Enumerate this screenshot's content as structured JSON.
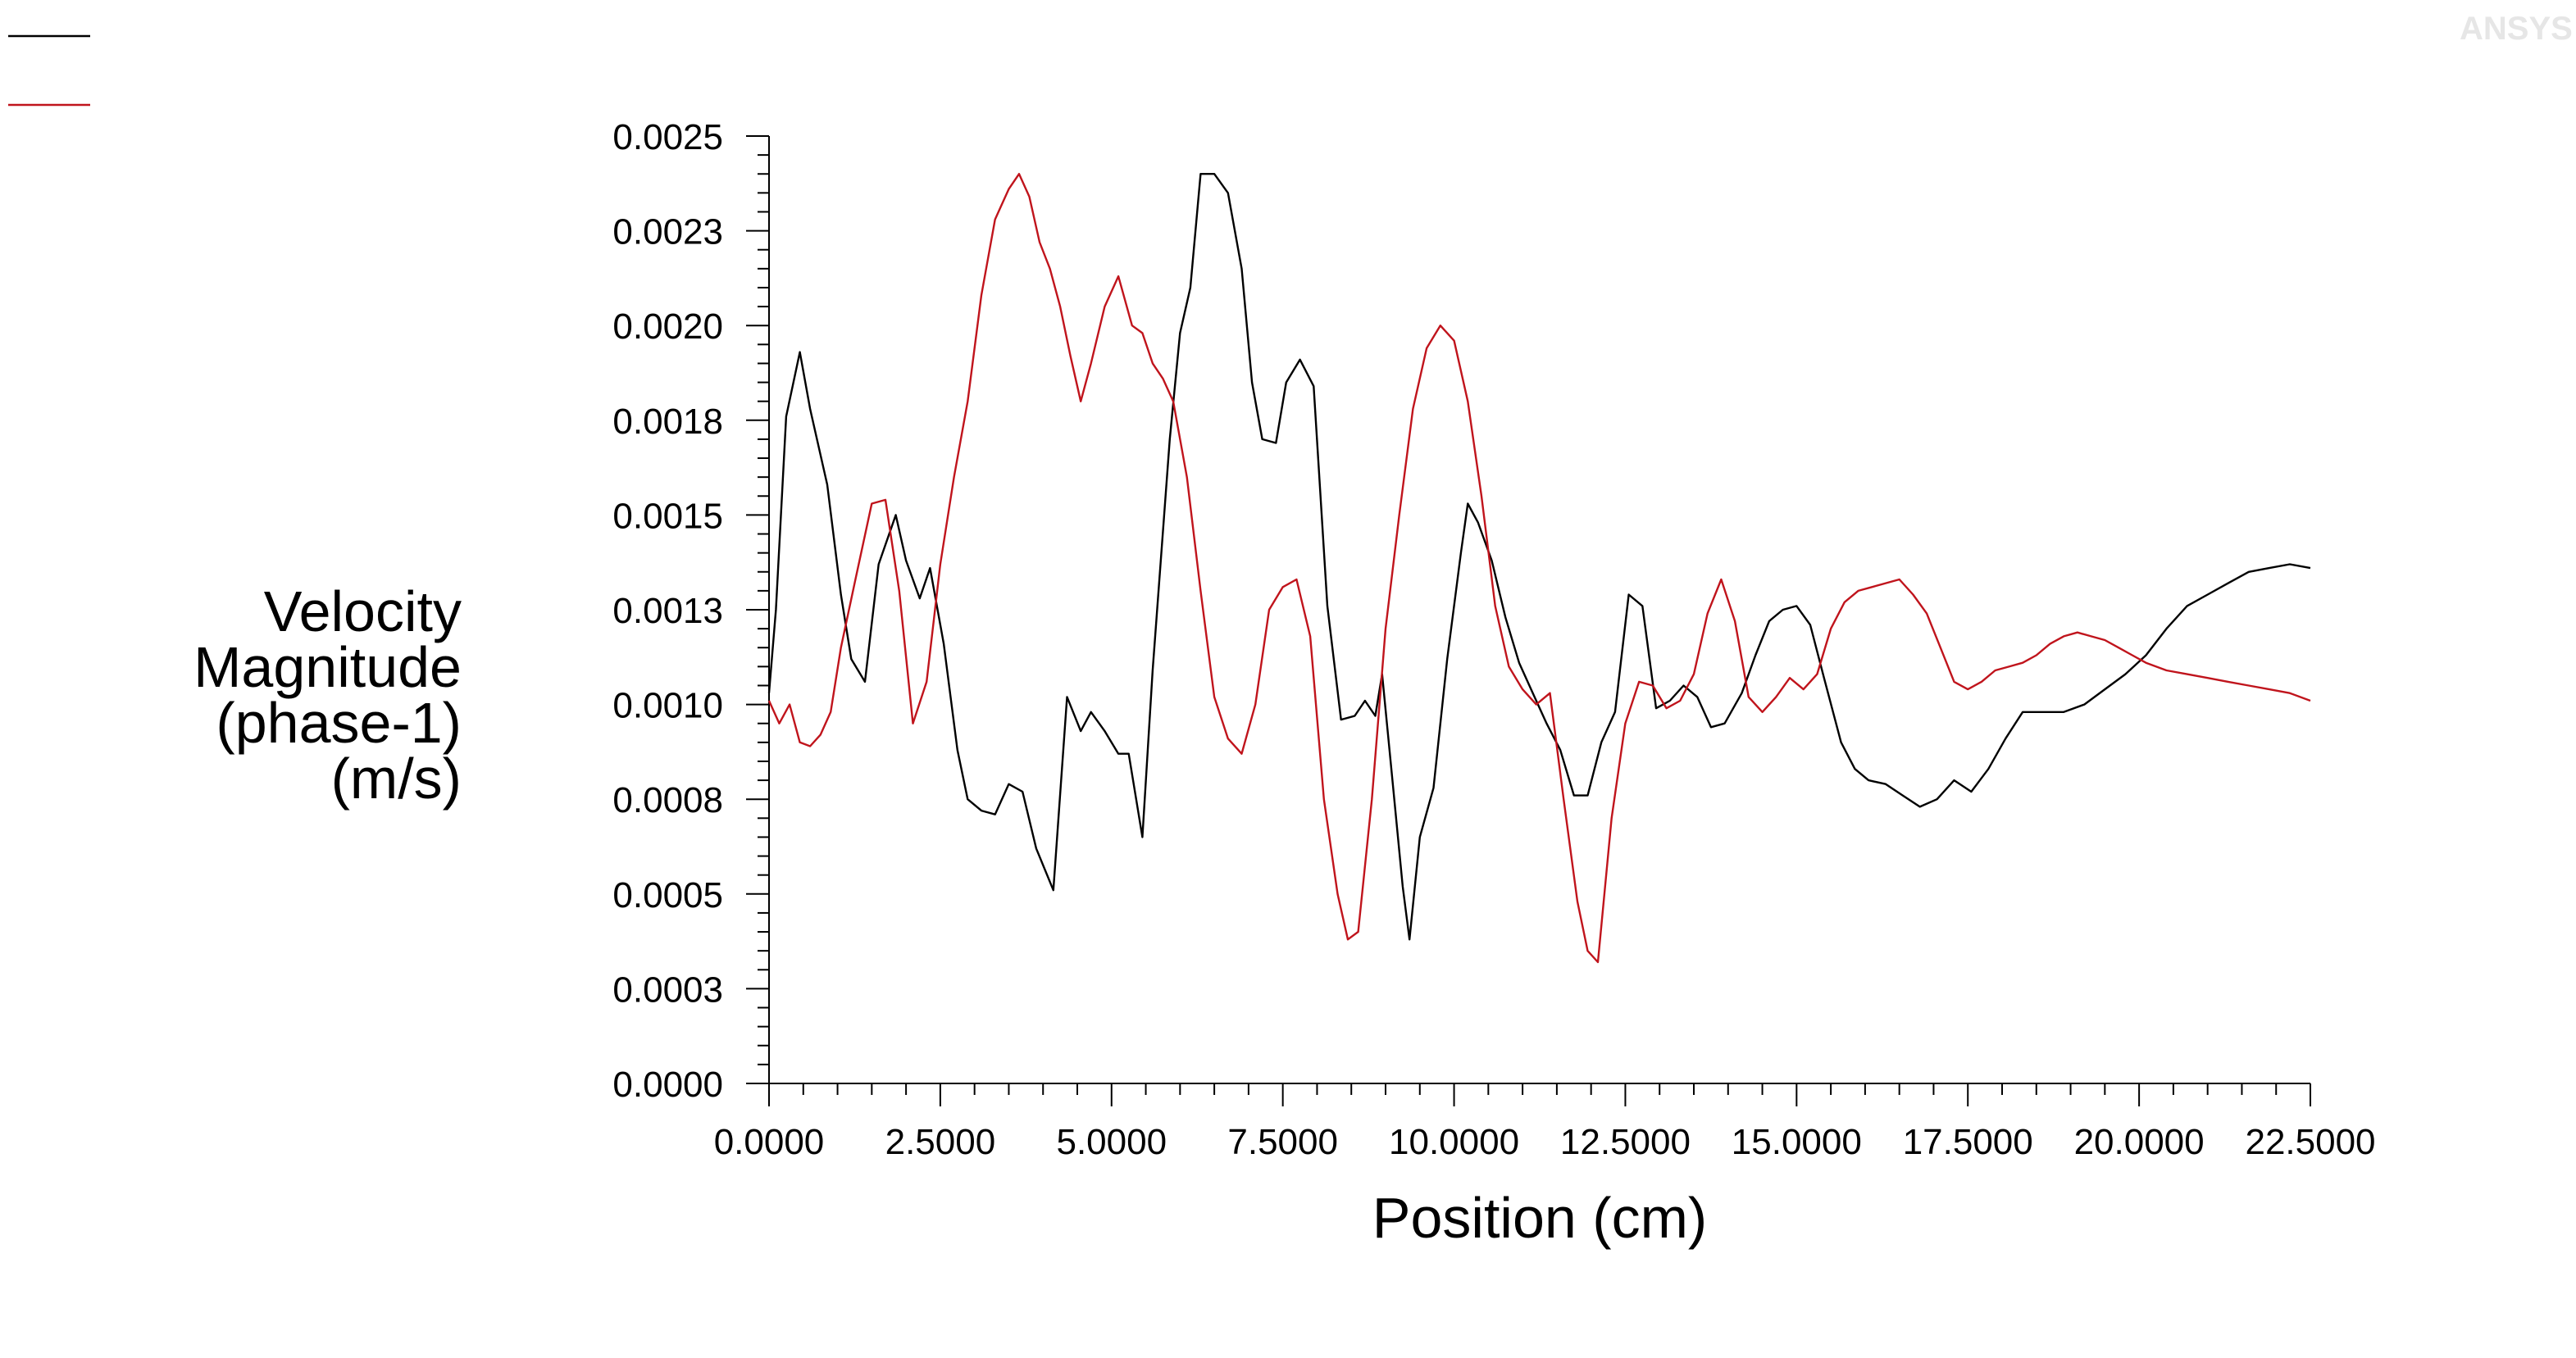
{
  "brand_watermark": "ANSYS",
  "colors": {
    "series_1": "#000000",
    "series_2": "#c0141c",
    "axis": "#000000",
    "background": "#ffffff"
  },
  "chart_data": {
    "type": "line",
    "title": "",
    "xlabel": "Position (cm)",
    "ylabel_lines": [
      "Velocity",
      "Magnitude",
      "(phase-1)",
      "(m/s)"
    ],
    "xlim": [
      0,
      22.5
    ],
    "ylim": [
      0,
      0.0025
    ],
    "x_ticks": [
      0,
      2.5,
      5,
      7.5,
      10,
      12.5,
      15,
      17.5,
      20,
      22.5
    ],
    "x_tick_labels": [
      "0.0000",
      "2.5000",
      "5.0000",
      "7.5000",
      "10.0000",
      "12.5000",
      "15.0000",
      "17.5000",
      "20.0000",
      "22.5000"
    ],
    "y_ticks": [
      0,
      0.00025,
      0.0005,
      0.00075,
      0.001,
      0.00125,
      0.0015,
      0.00175,
      0.002,
      0.00225,
      0.0025
    ],
    "y_tick_labels": [
      "0.0000",
      "0.0003",
      "0.0005",
      "0.0008",
      "0.0010",
      "0.0013",
      "0.0015",
      "0.0018",
      "0.0020",
      "0.0023",
      "0.0025"
    ],
    "grid": false,
    "legend_position": "top-left",
    "series": [
      {
        "color": "#000000",
        "points": [
          [
            0,
            0.00103
          ],
          [
            0.1,
            0.00125
          ],
          [
            0.25,
            0.00176
          ],
          [
            0.45,
            0.00193
          ],
          [
            0.6,
            0.00178
          ],
          [
            0.85,
            0.00158
          ],
          [
            1.05,
            0.00129
          ],
          [
            1.2,
            0.00112
          ],
          [
            1.4,
            0.00106
          ],
          [
            1.6,
            0.00137
          ],
          [
            1.85,
            0.0015
          ],
          [
            2.0,
            0.00138
          ],
          [
            2.2,
            0.00128
          ],
          [
            2.35,
            0.00136
          ],
          [
            2.55,
            0.00116
          ],
          [
            2.75,
            0.00088
          ],
          [
            2.9,
            0.00075
          ],
          [
            3.1,
            0.00072
          ],
          [
            3.3,
            0.00071
          ],
          [
            3.5,
            0.00079
          ],
          [
            3.7,
            0.00077
          ],
          [
            3.9,
            0.00062
          ],
          [
            4.15,
            0.00051
          ],
          [
            4.35,
            0.00102
          ],
          [
            4.55,
            0.00093
          ],
          [
            4.7,
            0.00098
          ],
          [
            4.9,
            0.00093
          ],
          [
            5.1,
            0.00087
          ],
          [
            5.25,
            0.00087
          ],
          [
            5.45,
            0.00065
          ],
          [
            5.6,
            0.00109
          ],
          [
            5.85,
            0.0017
          ],
          [
            6.0,
            0.00198
          ],
          [
            6.15,
            0.0021
          ],
          [
            6.3,
            0.0024
          ],
          [
            6.5,
            0.0024
          ],
          [
            6.7,
            0.00235
          ],
          [
            6.9,
            0.00215
          ],
          [
            7.05,
            0.00185
          ],
          [
            7.2,
            0.0017
          ],
          [
            7.4,
            0.00169
          ],
          [
            7.55,
            0.00185
          ],
          [
            7.75,
            0.00191
          ],
          [
            7.95,
            0.00184
          ],
          [
            8.15,
            0.00126
          ],
          [
            8.35,
            0.00096
          ],
          [
            8.55,
            0.00097
          ],
          [
            8.7,
            0.00101
          ],
          [
            8.85,
            0.00097
          ],
          [
            8.95,
            0.00108
          ],
          [
            9.1,
            0.0008
          ],
          [
            9.25,
            0.00052
          ],
          [
            9.35,
            0.00038
          ],
          [
            9.5,
            0.00065
          ],
          [
            9.7,
            0.00078
          ],
          [
            9.9,
            0.00112
          ],
          [
            10.1,
            0.0014
          ],
          [
            10.2,
            0.00153
          ],
          [
            10.35,
            0.00148
          ],
          [
            10.55,
            0.00138
          ],
          [
            10.75,
            0.00123
          ],
          [
            10.95,
            0.00111
          ],
          [
            11.15,
            0.00103
          ],
          [
            11.35,
            0.00095
          ],
          [
            11.55,
            0.00088
          ],
          [
            11.75,
            0.00076
          ],
          [
            11.95,
            0.00076
          ],
          [
            12.15,
            0.0009
          ],
          [
            12.35,
            0.00098
          ],
          [
            12.55,
            0.00129
          ],
          [
            12.75,
            0.00126
          ],
          [
            12.95,
            0.00099
          ],
          [
            13.15,
            0.00101
          ],
          [
            13.35,
            0.00105
          ],
          [
            13.55,
            0.00102
          ],
          [
            13.75,
            0.00094
          ],
          [
            13.95,
            0.00095
          ],
          [
            14.2,
            0.00103
          ],
          [
            14.4,
            0.00113
          ],
          [
            14.6,
            0.00122
          ],
          [
            14.8,
            0.00125
          ],
          [
            15.0,
            0.00126
          ],
          [
            15.2,
            0.00121
          ],
          [
            15.4,
            0.00107
          ],
          [
            15.65,
            0.0009
          ],
          [
            15.85,
            0.00083
          ],
          [
            16.05,
            0.0008
          ],
          [
            16.3,
            0.00079
          ],
          [
            16.55,
            0.00076
          ],
          [
            16.8,
            0.00073
          ],
          [
            17.05,
            0.00075
          ],
          [
            17.3,
            0.0008
          ],
          [
            17.55,
            0.00077
          ],
          [
            17.8,
            0.00083
          ],
          [
            18.05,
            0.00091
          ],
          [
            18.3,
            0.00098
          ],
          [
            18.6,
            0.00098
          ],
          [
            18.9,
            0.00098
          ],
          [
            19.2,
            0.001
          ],
          [
            19.5,
            0.00104
          ],
          [
            19.8,
            0.00108
          ],
          [
            20.1,
            0.00113
          ],
          [
            20.4,
            0.0012
          ],
          [
            20.7,
            0.00126
          ],
          [
            21.0,
            0.00129
          ],
          [
            21.3,
            0.00132
          ],
          [
            21.6,
            0.00135
          ],
          [
            21.9,
            0.00136
          ],
          [
            22.2,
            0.00137
          ],
          [
            22.5,
            0.00136
          ]
        ]
      },
      {
        "color": "#c0141c",
        "points": [
          [
            0,
            0.00101
          ],
          [
            0.15,
            0.00095
          ],
          [
            0.3,
            0.001
          ],
          [
            0.45,
            0.0009
          ],
          [
            0.6,
            0.00089
          ],
          [
            0.75,
            0.00092
          ],
          [
            0.9,
            0.00098
          ],
          [
            1.05,
            0.00115
          ],
          [
            1.25,
            0.00132
          ],
          [
            1.5,
            0.00153
          ],
          [
            1.7,
            0.00154
          ],
          [
            1.9,
            0.0013
          ],
          [
            2.1,
            0.00095
          ],
          [
            2.3,
            0.00106
          ],
          [
            2.5,
            0.00137
          ],
          [
            2.7,
            0.0016
          ],
          [
            2.9,
            0.0018
          ],
          [
            3.1,
            0.00208
          ],
          [
            3.3,
            0.00228
          ],
          [
            3.5,
            0.00236
          ],
          [
            3.65,
            0.0024
          ],
          [
            3.8,
            0.00234
          ],
          [
            3.95,
            0.00222
          ],
          [
            4.1,
            0.00215
          ],
          [
            4.25,
            0.00205
          ],
          [
            4.4,
            0.00192
          ],
          [
            4.55,
            0.0018
          ],
          [
            4.7,
            0.0019
          ],
          [
            4.9,
            0.00205
          ],
          [
            5.1,
            0.00213
          ],
          [
            5.3,
            0.002
          ],
          [
            5.45,
            0.00198
          ],
          [
            5.6,
            0.0019
          ],
          [
            5.75,
            0.00186
          ],
          [
            5.9,
            0.0018
          ],
          [
            6.1,
            0.0016
          ],
          [
            6.3,
            0.0013
          ],
          [
            6.5,
            0.00102
          ],
          [
            6.7,
            0.00091
          ],
          [
            6.9,
            0.00087
          ],
          [
            7.1,
            0.001
          ],
          [
            7.3,
            0.00125
          ],
          [
            7.5,
            0.00131
          ],
          [
            7.7,
            0.00133
          ],
          [
            7.9,
            0.00118
          ],
          [
            8.1,
            0.00075
          ],
          [
            8.3,
            0.0005
          ],
          [
            8.45,
            0.00038
          ],
          [
            8.6,
            0.0004
          ],
          [
            8.8,
            0.00075
          ],
          [
            9.0,
            0.0012
          ],
          [
            9.2,
            0.0015
          ],
          [
            9.4,
            0.00178
          ],
          [
            9.6,
            0.00194
          ],
          [
            9.8,
            0.002
          ],
          [
            10.0,
            0.00196
          ],
          [
            10.2,
            0.0018
          ],
          [
            10.4,
            0.00155
          ],
          [
            10.6,
            0.00126
          ],
          [
            10.8,
            0.0011
          ],
          [
            11.0,
            0.00104
          ],
          [
            11.2,
            0.001
          ],
          [
            11.4,
            0.00103
          ],
          [
            11.6,
            0.00075
          ],
          [
            11.8,
            0.00048
          ],
          [
            11.95,
            0.00035
          ],
          [
            12.1,
            0.00032
          ],
          [
            12.3,
            0.0007
          ],
          [
            12.5,
            0.00095
          ],
          [
            12.7,
            0.00106
          ],
          [
            12.9,
            0.00105
          ],
          [
            13.1,
            0.00099
          ],
          [
            13.3,
            0.00101
          ],
          [
            13.5,
            0.00108
          ],
          [
            13.7,
            0.00124
          ],
          [
            13.9,
            0.00133
          ],
          [
            14.1,
            0.00122
          ],
          [
            14.3,
            0.00102
          ],
          [
            14.5,
            0.00098
          ],
          [
            14.7,
            0.00102
          ],
          [
            14.9,
            0.00107
          ],
          [
            15.1,
            0.00104
          ],
          [
            15.3,
            0.00108
          ],
          [
            15.5,
            0.0012
          ],
          [
            15.7,
            0.00127
          ],
          [
            15.9,
            0.0013
          ],
          [
            16.1,
            0.00131
          ],
          [
            16.3,
            0.00132
          ],
          [
            16.5,
            0.00133
          ],
          [
            16.7,
            0.00129
          ],
          [
            16.9,
            0.00124
          ],
          [
            17.1,
            0.00115
          ],
          [
            17.3,
            0.00106
          ],
          [
            17.5,
            0.00104
          ],
          [
            17.7,
            0.00106
          ],
          [
            17.9,
            0.00109
          ],
          [
            18.1,
            0.0011
          ],
          [
            18.3,
            0.00111
          ],
          [
            18.5,
            0.00113
          ],
          [
            18.7,
            0.00116
          ],
          [
            18.9,
            0.00118
          ],
          [
            19.1,
            0.00119
          ],
          [
            19.3,
            0.00118
          ],
          [
            19.5,
            0.00117
          ],
          [
            19.7,
            0.00115
          ],
          [
            19.9,
            0.00113
          ],
          [
            20.1,
            0.00111
          ],
          [
            20.4,
            0.00109
          ],
          [
            20.7,
            0.00108
          ],
          [
            21.0,
            0.00107
          ],
          [
            21.3,
            0.00106
          ],
          [
            21.6,
            0.00105
          ],
          [
            21.9,
            0.00104
          ],
          [
            22.2,
            0.00103
          ],
          [
            22.5,
            0.00101
          ]
        ]
      }
    ]
  }
}
